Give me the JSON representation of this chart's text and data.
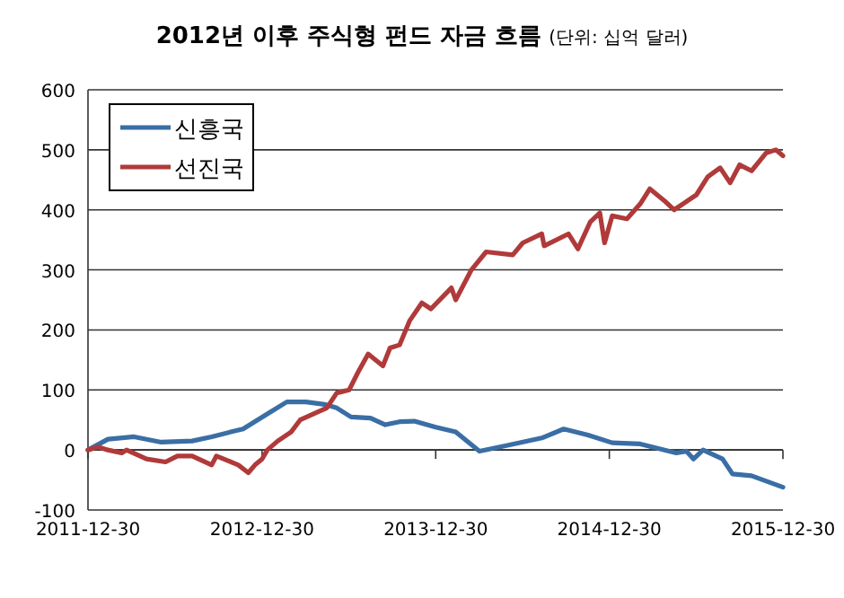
{
  "chart_data": {
    "type": "line",
    "title": "2012년 이후 주식형 펀드 자금 흐름",
    "subtitle": "(단위: 십억 달러)",
    "xlim": [
      "2011-12-30",
      "2015-12-30"
    ],
    "xticks": [
      "2011-12-30",
      "2012-12-30",
      "2013-12-30",
      "2014-12-30",
      "2015-12-30"
    ],
    "ylim": [
      -100,
      600
    ],
    "yticks": [
      -100,
      0,
      100,
      200,
      300,
      400,
      500,
      600
    ],
    "grid": "y",
    "legend": "top left",
    "marker": "none",
    "line_style": "solid",
    "series": [
      {
        "name": "신흥국",
        "color": "#3a6ea5",
        "x": [
          "2011-12-30",
          "2012-02-10",
          "2012-04-05",
          "2012-06-01",
          "2012-08-05",
          "2012-09-15",
          "2012-10-25",
          "2012-11-20",
          "2013-01-10",
          "2013-02-20",
          "2013-04-01",
          "2013-05-10",
          "2013-06-05",
          "2013-07-05",
          "2013-08-15",
          "2013-09-15",
          "2013-10-15",
          "2013-11-15",
          "2013-12-30",
          "2014-02-10",
          "2014-04-01",
          "2014-06-01",
          "2014-08-10",
          "2014-09-25",
          "2014-11-15",
          "2015-01-05",
          "2015-03-05",
          "2015-05-20",
          "2015-06-10",
          "2015-06-25",
          "2015-07-15",
          "2015-08-25",
          "2015-09-15",
          "2015-10-25",
          "2015-12-30"
        ],
        "values": [
          0,
          18,
          22,
          13,
          15,
          22,
          30,
          35,
          60,
          80,
          80,
          76,
          70,
          55,
          53,
          42,
          47,
          48,
          38,
          30,
          -2,
          8,
          20,
          35,
          25,
          12,
          10,
          -5,
          -2,
          -15,
          0,
          -15,
          -40,
          -43,
          -62
        ]
      },
      {
        "name": "선진국",
        "color": "#b03a3a",
        "x": [
          "2011-12-30",
          "2012-01-20",
          "2012-02-10",
          "2012-03-10",
          "2012-03-20",
          "2012-05-01",
          "2012-06-10",
          "2012-07-05",
          "2012-08-05",
          "2012-09-15",
          "2012-09-25",
          "2012-11-10",
          "2012-12-01",
          "2012-12-15",
          "2012-12-30",
          "2013-01-10",
          "2013-02-01",
          "2013-03-01",
          "2013-03-20",
          "2013-05-01",
          "2013-05-15",
          "2013-06-05",
          "2013-07-01",
          "2013-07-20",
          "2013-08-10",
          "2013-09-10",
          "2013-09-25",
          "2013-10-15",
          "2013-11-05",
          "2013-12-01",
          "2013-12-20",
          "2014-02-01",
          "2014-02-10",
          "2014-03-15",
          "2014-04-15",
          "2014-06-10",
          "2014-07-01",
          "2014-08-10",
          "2014-08-15",
          "2014-10-05",
          "2014-10-25",
          "2014-11-20",
          "2014-12-10",
          "2014-12-20",
          "2015-01-05",
          "2015-02-05",
          "2015-03-05",
          "2015-03-25",
          "2015-04-25",
          "2015-05-15",
          "2015-07-01",
          "2015-07-25",
          "2015-08-20",
          "2015-09-10",
          "2015-09-30",
          "2015-10-25",
          "2015-11-25",
          "2015-12-15",
          "2015-12-30"
        ],
        "values": [
          0,
          5,
          0,
          -5,
          0,
          -15,
          -20,
          -10,
          -10,
          -25,
          -10,
          -25,
          -38,
          -25,
          -15,
          0,
          15,
          30,
          50,
          65,
          70,
          95,
          100,
          130,
          160,
          140,
          170,
          175,
          215,
          245,
          235,
          270,
          250,
          300,
          330,
          325,
          345,
          360,
          340,
          360,
          335,
          380,
          395,
          345,
          390,
          385,
          410,
          435,
          415,
          400,
          425,
          455,
          470,
          445,
          475,
          465,
          495,
          500,
          490
        ]
      }
    ]
  }
}
